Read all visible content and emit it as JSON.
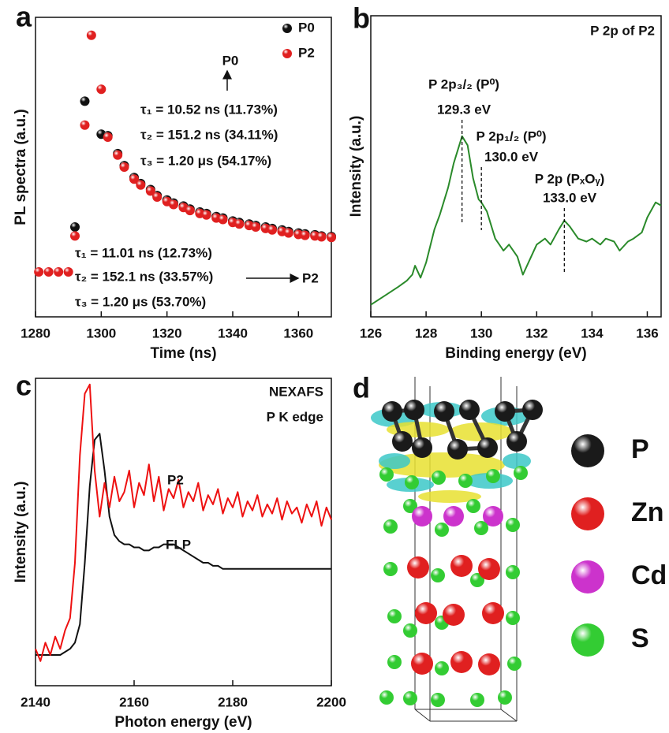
{
  "chart_data": [
    {
      "type": "scatter",
      "label": "a",
      "xlabel": "Time (ns)",
      "ylabel": "PL spectra (a.u.)",
      "xlim": [
        1280,
        1370
      ],
      "ylim": [
        0,
        1
      ],
      "xticks": [
        1280,
        1300,
        1320,
        1340,
        1360
      ],
      "x": [
        1281,
        1284,
        1287,
        1290,
        1292,
        1295,
        1297,
        1300,
        1302,
        1305,
        1307,
        1310,
        1312,
        1315,
        1317,
        1320,
        1322,
        1325,
        1327,
        1330,
        1332,
        1335,
        1337,
        1340,
        1342,
        1345,
        1347,
        1350,
        1352,
        1355,
        1357,
        1360,
        1362,
        1365,
        1367,
        1370
      ],
      "series": [
        {
          "name": "P0",
          "color": "#111111",
          "values": [
            null,
            null,
            null,
            null,
            0.3,
            0.72,
            null,
            0.61,
            0.605,
            0.545,
            0.505,
            0.465,
            0.445,
            0.425,
            0.405,
            0.39,
            0.38,
            0.37,
            0.36,
            0.35,
            0.345,
            0.335,
            0.33,
            0.32,
            0.315,
            0.31,
            0.305,
            0.3,
            0.295,
            0.29,
            0.285,
            0.28,
            0.277,
            0.274,
            0.27,
            0.268
          ]
        },
        {
          "name": "P2",
          "color": "#e02020",
          "values": [
            0.15,
            0.15,
            0.15,
            0.15,
            0.27,
            0.64,
            0.94,
            0.76,
            0.6,
            0.54,
            0.5,
            0.46,
            0.44,
            0.42,
            0.4,
            0.385,
            0.375,
            0.365,
            0.355,
            0.345,
            0.34,
            0.33,
            0.325,
            0.315,
            0.31,
            0.305,
            0.3,
            0.295,
            0.29,
            0.285,
            0.28,
            0.275,
            0.272,
            0.27,
            0.267,
            0.265
          ]
        }
      ],
      "annotations": [
        "P0",
        "τ₁ = 10.52 ns (11.73%)",
        "τ₂ = 151.2 ns (34.11%)",
        "τ₃ = 1.20 μs (54.17%)",
        "τ₁ = 11.01 ns (12.73%)",
        "τ₂ = 152.1 ns (33.57%)",
        "P2",
        "τ₃ = 1.20 μs (53.70%)"
      ]
    },
    {
      "type": "line",
      "label": "b",
      "title": "P 2p of P2",
      "xlabel": "Binding energy (eV)",
      "ylabel": "Intensity (a.u.)",
      "xlim": [
        126,
        136.5
      ],
      "ylim": [
        0,
        1
      ],
      "xticks": [
        126,
        128,
        130,
        132,
        134,
        136
      ],
      "x": [
        126,
        126.5,
        127,
        127.3,
        127.5,
        127.6,
        127.8,
        128,
        128.3,
        128.5,
        128.8,
        129,
        129.3,
        129.5,
        129.7,
        129.9,
        130,
        130.2,
        130.5,
        130.8,
        131,
        131.3,
        131.5,
        131.8,
        132,
        132.3,
        132.5,
        132.8,
        133,
        133.2,
        133.5,
        133.8,
        134,
        134.3,
        134.5,
        134.8,
        135,
        135.3,
        135.5,
        135.8,
        136,
        136.3,
        136.5
      ],
      "series": [
        {
          "color": "#2a8a2a",
          "values": [
            0.04,
            0.07,
            0.1,
            0.12,
            0.14,
            0.17,
            0.13,
            0.18,
            0.29,
            0.34,
            0.43,
            0.51,
            0.6,
            0.57,
            0.46,
            0.39,
            0.38,
            0.35,
            0.26,
            0.22,
            0.24,
            0.2,
            0.14,
            0.2,
            0.24,
            0.26,
            0.24,
            0.29,
            0.32,
            0.3,
            0.26,
            0.25,
            0.26,
            0.24,
            0.26,
            0.25,
            0.22,
            0.25,
            0.26,
            0.28,
            0.33,
            0.38,
            0.37
          ]
        }
      ],
      "peaks": [
        {
          "name": "P 2p₃/₂ (P⁰)",
          "value": 129.3,
          "label": "129.3 eV"
        },
        {
          "name": "P 2p₁/₂ (P⁰)",
          "value": 130.0,
          "label": "130.0 eV"
        },
        {
          "name": "P 2p (PₓOᵧ)",
          "value": 133.0,
          "label": "133.0 eV"
        }
      ]
    },
    {
      "type": "line",
      "label": "c",
      "xlabel": "Photon energy (eV)",
      "ylabel": "Intensity (a.u.)",
      "xlim": [
        2140,
        2200
      ],
      "ylim": [
        0,
        1
      ],
      "xticks": [
        2140,
        2160,
        2180,
        2200
      ],
      "annotations": [
        "NEXAFS",
        "P K edge"
      ],
      "x": [
        2140,
        2141,
        2142,
        2143,
        2144,
        2145,
        2146,
        2147,
        2148,
        2149,
        2150,
        2151,
        2152,
        2153,
        2154,
        2155,
        2156,
        2157,
        2158,
        2159,
        2160,
        2161,
        2162,
        2163,
        2164,
        2165,
        2166,
        2167,
        2168,
        2169,
        2170,
        2171,
        2172,
        2173,
        2174,
        2175,
        2176,
        2177,
        2178,
        2179,
        2180,
        2181,
        2182,
        2183,
        2184,
        2185,
        2186,
        2187,
        2188,
        2189,
        2190,
        2191,
        2192,
        2193,
        2194,
        2195,
        2196,
        2197,
        2198,
        2199,
        2200
      ],
      "series": [
        {
          "name": "FLP",
          "color": "#111111",
          "values": [
            0.1,
            0.1,
            0.1,
            0.1,
            0.1,
            0.1,
            0.11,
            0.12,
            0.14,
            0.2,
            0.4,
            0.65,
            0.8,
            0.82,
            0.7,
            0.55,
            0.49,
            0.47,
            0.46,
            0.46,
            0.45,
            0.45,
            0.44,
            0.44,
            0.45,
            0.45,
            0.46,
            0.46,
            0.46,
            0.45,
            0.44,
            0.43,
            0.42,
            0.41,
            0.4,
            0.4,
            0.39,
            0.39,
            0.38,
            0.38,
            0.38,
            0.38,
            0.38,
            0.38,
            0.38,
            0.38,
            0.38,
            0.38,
            0.38,
            0.38,
            0.38,
            0.38,
            0.38,
            0.38,
            0.38,
            0.38,
            0.38,
            0.38,
            0.38,
            0.38,
            0.38
          ]
        },
        {
          "name": "P2",
          "color": "#ee1111",
          "values": [
            0.12,
            0.08,
            0.14,
            0.1,
            0.16,
            0.12,
            0.18,
            0.22,
            0.4,
            0.75,
            0.95,
            0.98,
            0.7,
            0.55,
            0.66,
            0.58,
            0.68,
            0.6,
            0.63,
            0.7,
            0.58,
            0.66,
            0.62,
            0.72,
            0.6,
            0.68,
            0.57,
            0.64,
            0.61,
            0.67,
            0.58,
            0.63,
            0.6,
            0.66,
            0.57,
            0.62,
            0.59,
            0.64,
            0.56,
            0.61,
            0.58,
            0.63,
            0.55,
            0.6,
            0.57,
            0.62,
            0.55,
            0.59,
            0.56,
            0.61,
            0.54,
            0.6,
            0.56,
            0.58,
            0.53,
            0.59,
            0.55,
            0.6,
            0.52,
            0.58,
            0.54
          ]
        }
      ]
    }
  ],
  "structure": {
    "label": "d",
    "legend": [
      {
        "name": "P",
        "color": "#1a1a1a"
      },
      {
        "name": "Zn",
        "color": "#e02020"
      },
      {
        "name": "Cd",
        "color": "#cc33cc"
      },
      {
        "name": "S",
        "color": "#33cc33"
      }
    ]
  }
}
